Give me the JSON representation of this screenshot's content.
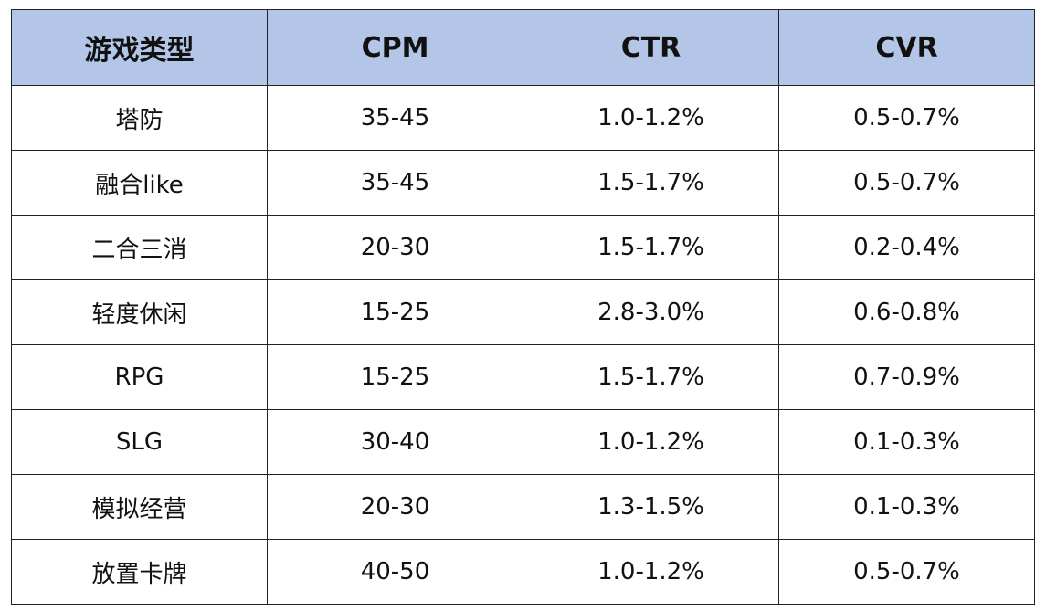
{
  "table": {
    "headers": [
      "游戏类型",
      "CPM",
      "CTR",
      "CVR"
    ],
    "rows": [
      [
        "塔防",
        "35-45",
        "1.0-1.2%",
        "0.5-0.7%"
      ],
      [
        "融合like",
        "35-45",
        "1.5-1.7%",
        "0.5-0.7%"
      ],
      [
        "二合三消",
        "20-30",
        "1.5-1.7%",
        "0.2-0.4%"
      ],
      [
        "轻度休闲",
        "15-25",
        "2.8-3.0%",
        "0.6-0.8%"
      ],
      [
        "RPG",
        "15-25",
        "1.5-1.7%",
        "0.7-0.9%"
      ],
      [
        "SLG",
        "30-40",
        "1.0-1.2%",
        "0.1-0.3%"
      ],
      [
        "模拟经营",
        "20-30",
        "1.3-1.5%",
        "0.1-0.3%"
      ],
      [
        "放置卡牌",
        "40-50",
        "1.0-1.2%",
        "0.5-0.7%"
      ]
    ]
  },
  "colors": {
    "header_bg": "#b4c6e7",
    "border": "#222222",
    "text": "#111111"
  }
}
